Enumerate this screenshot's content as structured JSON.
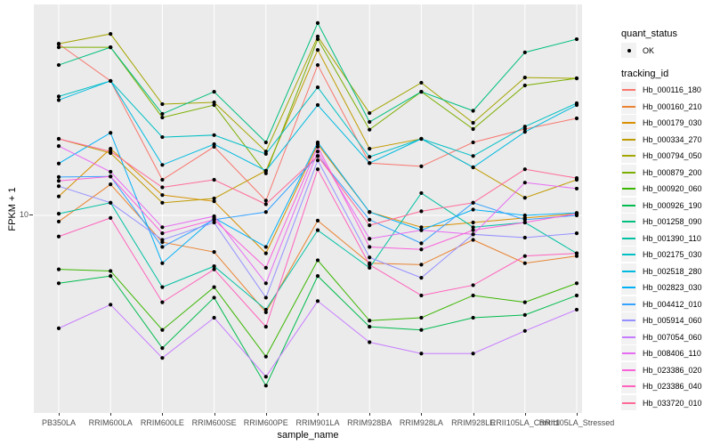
{
  "axes": {
    "y_title": "FPKM + 1",
    "y_tick": "10",
    "x_title": "sample_name"
  },
  "legend": {
    "quant_title": "quant_status",
    "quant_ok_label": "OK",
    "tracking_title": "tracking_id"
  },
  "chart_data": {
    "type": "line",
    "title": "",
    "xlabel": "sample_name",
    "ylabel": "FPKM + 1",
    "y_scale": "log10",
    "ylim": [
      1,
      120
    ],
    "y_ticks": [
      10
    ],
    "grid": "major-only",
    "legend_position": "right",
    "panel_bg": "#EBEBEB",
    "grid_color": "#FFFFFF",
    "point_color": "#000000",
    "quant_status_value": "OK",
    "categories": [
      "PB350LA",
      "RRIM600LA",
      "RRIM600LE",
      "RRIM600SE",
      "RRIM600PE",
      "RRIM901LA",
      "RRIM928BA",
      "RRIM928LA",
      "RRIM928LE",
      "RRII105LA_Control",
      "RRII105LA_Stressed"
    ],
    "series": [
      {
        "name": "Hb_000116_180",
        "color": "#F8766D",
        "values": [
          75,
          48.6,
          15.2,
          22.4,
          11.9,
          58.6,
          18.5,
          17.8,
          23.6,
          27.6,
          31.3
        ]
      },
      {
        "name": "Hb_000160_210",
        "color": "#EA8331",
        "values": [
          9.3,
          14.4,
          7.3,
          6.5,
          3.2,
          9.4,
          5.7,
          5.6,
          7.5,
          5.7,
          6.2
        ]
      },
      {
        "name": "Hb_000179_030",
        "color": "#D89000",
        "values": [
          12.5,
          21.9,
          12.7,
          11.8,
          6.4,
          23.1,
          10.4,
          8.7,
          9.2,
          9.7,
          10.2
        ]
      },
      {
        "name": "Hb_000334_270",
        "color": "#C09B00",
        "values": [
          24.6,
          20.8,
          11.6,
          12.2,
          16.9,
          70,
          21.9,
          24.6,
          17.6,
          12.3,
          15.2
        ]
      },
      {
        "name": "Hb_000794_050",
        "color": "#A3A500",
        "values": [
          75.3,
          84.5,
          37,
          37.8,
          21.2,
          82,
          33.3,
          47.6,
          29.7,
          50.6,
          50.1
        ]
      },
      {
        "name": "Hb_000879_200",
        "color": "#7CAE00",
        "values": [
          72.2,
          72.2,
          31.6,
          36.6,
          16.4,
          79.4,
          27.4,
          42.8,
          27.6,
          46.1,
          50.1
        ]
      },
      {
        "name": "Hb_000920_060",
        "color": "#39B600",
        "values": [
          5.3,
          5.2,
          2.6,
          4.3,
          1.9,
          5.9,
          2.9,
          3.0,
          3.9,
          3.6,
          4.5
        ]
      },
      {
        "name": "Hb_000926_190",
        "color": "#00BB4E",
        "values": [
          4.5,
          4.9,
          2.1,
          3.8,
          1.35,
          4.9,
          2.7,
          2.6,
          3.0,
          3.1,
          3.9
        ]
      },
      {
        "name": "Hb_001258_090",
        "color": "#00BF7D",
        "values": [
          58.6,
          72.2,
          33,
          42.8,
          23.6,
          96,
          30,
          42.8,
          34.2,
          68,
          79.4
        ]
      },
      {
        "name": "Hb_001390_110",
        "color": "#00C1A3",
        "values": [
          10.2,
          11.6,
          4.3,
          5.5,
          3.3,
          8.4,
          5.4,
          13,
          8.7,
          9.2,
          6.4
        ]
      },
      {
        "name": "Hb_002175_030",
        "color": "#00BFC4",
        "values": [
          40.5,
          48.6,
          25.1,
          25.7,
          20.6,
          45.1,
          19.9,
          24.6,
          20.1,
          28.4,
          37.4
        ]
      },
      {
        "name": "Hb_002518_280",
        "color": "#00BAE0",
        "values": [
          38.8,
          48.6,
          18.1,
          23.1,
          16.9,
          36.6,
          18.5,
          24.6,
          17.6,
          26.7,
          36.6
        ]
      },
      {
        "name": "Hb_002823_030",
        "color": "#00B0F6",
        "values": [
          18.4,
          26.4,
          5.7,
          9.7,
          6.9,
          23.6,
          10.4,
          8.4,
          10.7,
          10,
          10.3
        ]
      },
      {
        "name": "Hb_004412_010",
        "color": "#35A2FF",
        "values": [
          15.7,
          15.8,
          6.9,
          9.5,
          10.4,
          20.1,
          9.5,
          7.2,
          11.6,
          9.5,
          10
        ]
      },
      {
        "name": "Hb_005914_060",
        "color": "#9590FF",
        "values": [
          14.1,
          11.6,
          7.5,
          9.2,
          3.8,
          19.1,
          6.1,
          4.8,
          8.0,
          7.7,
          8.1
        ]
      },
      {
        "name": "Hb_007054_060",
        "color": "#C77CFF",
        "values": [
          2.65,
          3.5,
          1.87,
          3.0,
          1.5,
          3.65,
          2.25,
          1.97,
          1.97,
          2.57,
          3.3
        ]
      },
      {
        "name": "Hb_008406_110",
        "color": "#E76BF3",
        "values": [
          22.6,
          16.7,
          8.7,
          9.9,
          4.5,
          21.2,
          7.6,
          8.4,
          8.0,
          14.7,
          13.7
        ]
      },
      {
        "name": "Hb_023386_020",
        "color": "#FA62DB",
        "values": [
          15.0,
          15.8,
          8.1,
          9.5,
          5.4,
          22.4,
          6.9,
          6.7,
          8.4,
          9.2,
          10.2
        ]
      },
      {
        "name": "Hb_023386_040",
        "color": "#FF62BC",
        "values": [
          7.8,
          9.7,
          3.6,
          5.3,
          2.7,
          17.2,
          5.6,
          3.9,
          4.4,
          6.2,
          6.4
        ]
      },
      {
        "name": "Hb_033720_010",
        "color": "#FF6A98",
        "values": [
          24.6,
          21.2,
          13.9,
          15.2,
          11.4,
          20.1,
          8.9,
          10.5,
          11.6,
          17.2,
          15.5
        ]
      }
    ]
  }
}
